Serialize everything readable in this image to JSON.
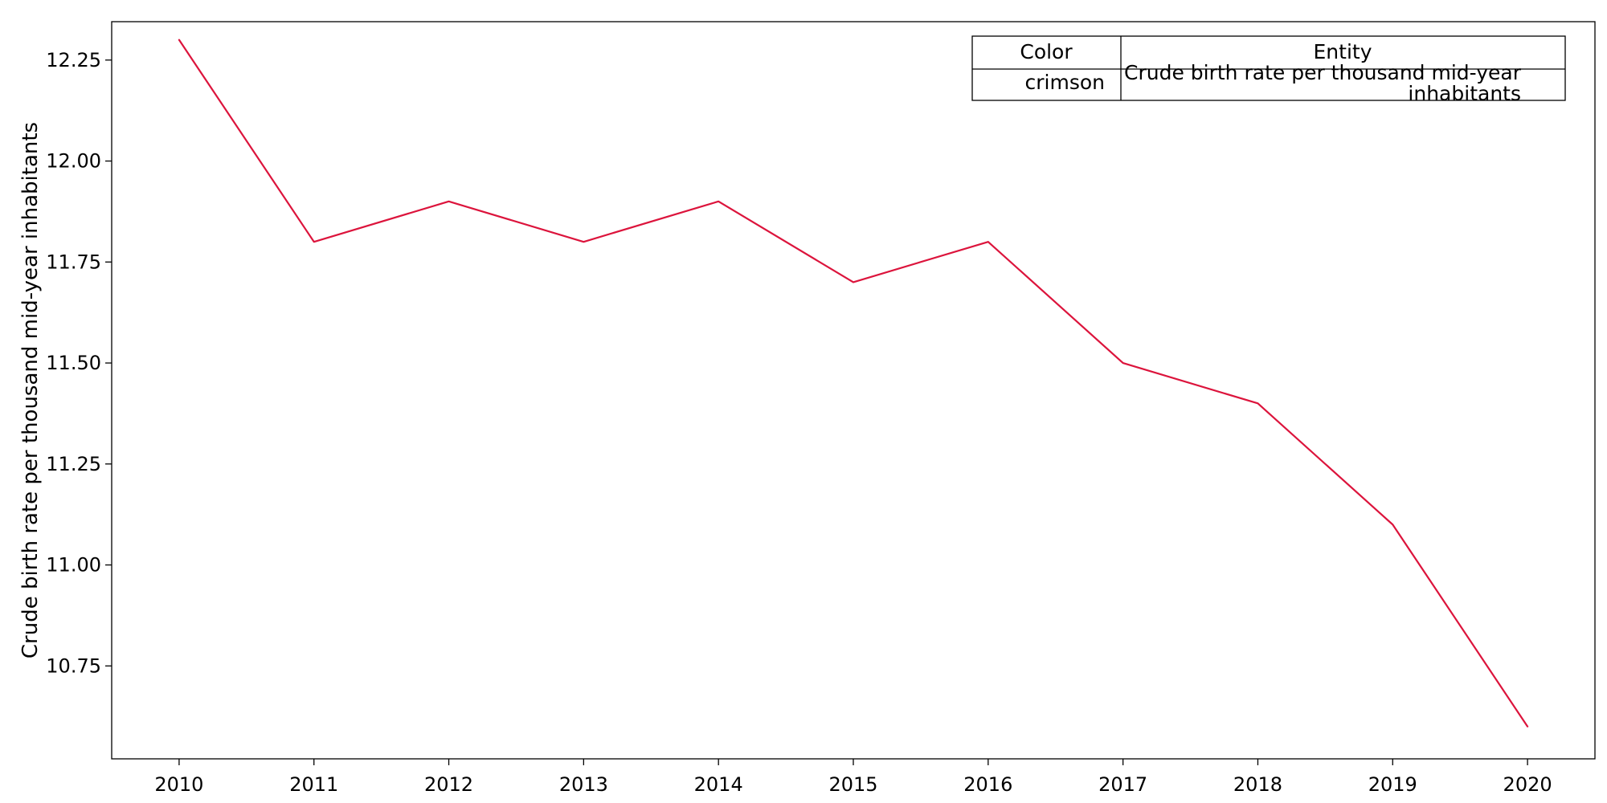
{
  "chart_data": {
    "type": "line",
    "title": "",
    "xlabel": "",
    "ylabel": "Crude birth rate per thousand mid-year inhabitants",
    "x": [
      2010,
      2011,
      2012,
      2013,
      2014,
      2015,
      2016,
      2017,
      2018,
      2019,
      2020
    ],
    "x_tick_labels": [
      "2010",
      "2011",
      "2012",
      "2013",
      "2014",
      "2015",
      "2016",
      "2017",
      "2018",
      "2019",
      "2020"
    ],
    "xlim": [
      2009.5,
      2020.5
    ],
    "ylim": [
      10.52,
      12.345
    ],
    "y_ticks": [
      10.75,
      11.0,
      11.25,
      11.5,
      11.75,
      12.0,
      12.25
    ],
    "y_tick_labels": [
      "10.75",
      "11.00",
      "11.25",
      "11.50",
      "11.75",
      "12.00",
      "12.25"
    ],
    "grid": false,
    "legend_placement": "top-right",
    "series": [
      {
        "name": "Crude birth rate per thousand mid-year inhabitants",
        "color": "#dc143c",
        "values": [
          12.3,
          11.8,
          11.9,
          11.8,
          11.9,
          11.7,
          11.8,
          11.5,
          11.4,
          11.1,
          10.6
        ]
      }
    ],
    "legend_table": {
      "headers": [
        "Color",
        "Entity"
      ],
      "rows": [
        {
          "color_name": "crimson",
          "entity_line1": "Crude birth rate per thousand mid-year",
          "entity_line2": "inhabitants"
        }
      ]
    }
  }
}
